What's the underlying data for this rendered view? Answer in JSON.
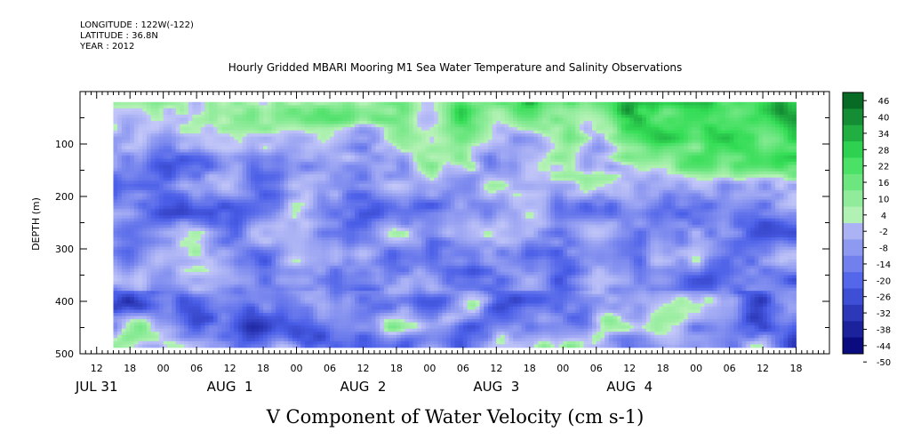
{
  "header": {
    "longitude": "LONGITUDE : 122W(-122)",
    "latitude": "LATITUDE : 36.8N",
    "year": "YEAR : 2012"
  },
  "chart_data": {
    "type": "heatmap",
    "title": "Hourly Gridded MBARI Mooring M1 Sea Water Temperature and Salinity Observations",
    "xlabel": "V Component of Water Velocity (cm s-1)",
    "ylabel": "DEPTH (m)",
    "y_range": [
      0,
      500
    ],
    "y_inverted": true,
    "y_ticks": [
      100,
      200,
      300,
      400,
      500
    ],
    "x_hour_ticks": [
      "12",
      "18",
      "00",
      "06",
      "12",
      "18",
      "00",
      "06",
      "12",
      "18",
      "00",
      "06",
      "12",
      "18",
      "00",
      "06",
      "12",
      "18",
      "00",
      "06",
      "12",
      "18"
    ],
    "x_date_labels": [
      "JUL 31",
      "AUG  1",
      "AUG  2",
      "AUG  3",
      "AUG  4"
    ],
    "data_extent_hours": [
      15,
      138
    ],
    "data_depth_range_m": [
      20,
      488
    ],
    "colorbar_levels": [
      46,
      40,
      34,
      28,
      22,
      16,
      10,
      4,
      -2,
      -8,
      -14,
      -20,
      -26,
      -32,
      -38,
      -44,
      -50
    ],
    "colorscale": {
      "min": -50,
      "max": 46,
      "negative": "blue",
      "positive": "green"
    },
    "colors": {
      "positive_light": "#b8f2b8",
      "positive_mid": "#33dd55",
      "positive_dark": "#005a1e",
      "negative_light": "#c4c8f8",
      "negative_mid": "#4a5ee8",
      "negative_dark": "#000070"
    },
    "field_description_values": {
      "upper_layer_late_period": "northward (positive) up to ~40",
      "lower_layer": "southward (negative) down to ~-30"
    }
  }
}
